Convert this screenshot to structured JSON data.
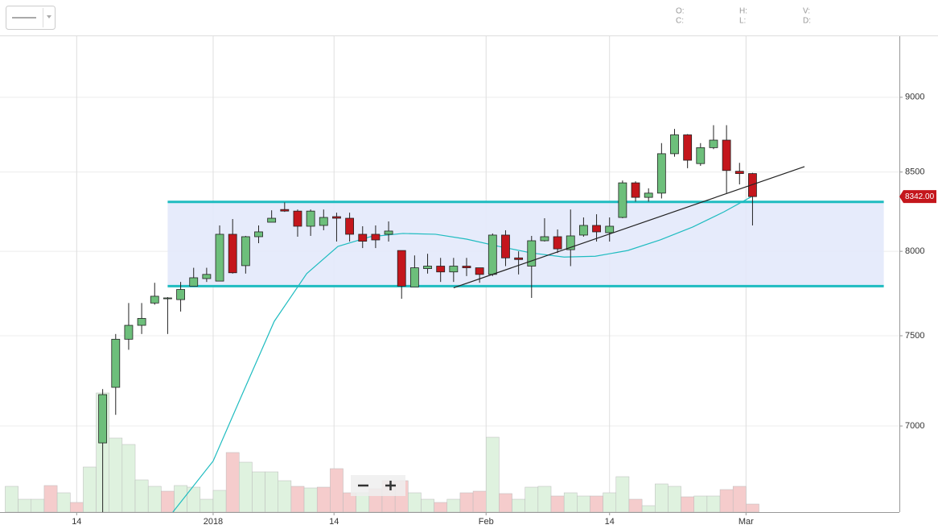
{
  "toolbar": {
    "fields": [
      "O:",
      "C:",
      "H:",
      "L:",
      "V:",
      "D:"
    ]
  },
  "chart_data": {
    "type": "candlestick",
    "x": [
      -7,
      -6,
      -5,
      -4,
      -3,
      -2,
      -1,
      0,
      1,
      2,
      3,
      4,
      5,
      6,
      7,
      8,
      9,
      10,
      11,
      12,
      13,
      14,
      15,
      16,
      17,
      18,
      19,
      20,
      21,
      22,
      23,
      24,
      25,
      26,
      27,
      28,
      29,
      30,
      31,
      32,
      33,
      34,
      35,
      36,
      37,
      38,
      39,
      40,
      41,
      42,
      43,
      44,
      45,
      46,
      47,
      48,
      49,
      50
    ],
    "open": [
      null,
      null,
      null,
      null,
      null,
      null,
      null,
      6910,
      7210,
      7480,
      7560,
      7690,
      7715,
      7710,
      7790,
      7835,
      7820,
      8105,
      7913,
      8090,
      8180,
      8260,
      8250,
      8155,
      8160,
      8215,
      8205,
      8105,
      8105,
      8105,
      8005,
      7785,
      7895,
      7910,
      7875,
      7910,
      7900,
      7860,
      8100,
      7960,
      7910,
      8065,
      8090,
      8010,
      8100,
      8160,
      8115,
      8210,
      8430,
      8337,
      8364,
      8620,
      8745,
      8555,
      8660,
      8710,
      8505,
      8490
    ],
    "high": [
      null,
      null,
      null,
      null,
      null,
      null,
      null,
      7200,
      7510,
      7690,
      7690,
      7810,
      7725,
      7815,
      7900,
      7900,
      8160,
      8200,
      8095,
      8160,
      8255,
      8305,
      8260,
      8260,
      8260,
      8240,
      8240,
      8155,
      8160,
      8185,
      8005,
      7975,
      7985,
      7960,
      7960,
      7960,
      7900,
      8110,
      8130,
      8000,
      8095,
      8205,
      8135,
      8260,
      8210,
      8230,
      8210,
      8445,
      8440,
      8395,
      8690,
      8785,
      8750,
      8690,
      8810,
      8810,
      8560,
      8495
    ],
    "low": [
      null,
      null,
      null,
      null,
      null,
      null,
      null,
      6500,
      7060,
      7420,
      7510,
      7680,
      7510,
      7640,
      7790,
      7815,
      7820,
      7865,
      7865,
      8050,
      8180,
      8245,
      8090,
      8095,
      8130,
      8060,
      8060,
      8020,
      8020,
      8060,
      7715,
      7785,
      7865,
      7815,
      7815,
      7850,
      7810,
      7850,
      7910,
      7860,
      7720,
      8060,
      7990,
      7910,
      8090,
      8060,
      8060,
      8205,
      8310,
      8310,
      8330,
      8600,
      8525,
      8540,
      8650,
      8364,
      8420,
      8160
    ],
    "close": [
      null,
      null,
      null,
      null,
      null,
      null,
      null,
      7170,
      7480,
      7560,
      7600,
      7730,
      7720,
      7770,
      7840,
      7860,
      8105,
      7870,
      8090,
      8120,
      8205,
      8250,
      8155,
      8250,
      8210,
      8205,
      8105,
      8062,
      8070,
      8125,
      7790,
      7900,
      7910,
      7875,
      7910,
      7900,
      7860,
      8100,
      7960,
      7950,
      8065,
      8090,
      8015,
      8095,
      8160,
      8120,
      8155,
      8430,
      8337,
      8364,
      8620,
      8745,
      8577,
      8660,
      8710,
      8510,
      8490,
      8342
    ],
    "volume": [
      32,
      16,
      16,
      33,
      24,
      12,
      56,
      148,
      92,
      84,
      40,
      32,
      26,
      33,
      31,
      16,
      27,
      74,
      62,
      50,
      50,
      39,
      32,
      30,
      31,
      54,
      24,
      24,
      29,
      39,
      39,
      24,
      16,
      12,
      16,
      24,
      26,
      93,
      23,
      16,
      31,
      32,
      20,
      24,
      20,
      20,
      24,
      44,
      16,
      8,
      35,
      32,
      19,
      20,
      20,
      28,
      32,
      10
    ],
    "volume_colors": [
      "#dff2df",
      "#dff2df",
      "#dff2df",
      "#f5cccc",
      "#dff2df",
      "#f5cccc",
      "#dff2df",
      "#dff2df",
      "#dff2df",
      "#dff2df",
      "#dff2df",
      "#dff2df",
      "#f5cccc",
      "#dff2df",
      "#dff2df",
      "#dff2df",
      "#dff2df",
      "#f5cccc",
      "#dff2df",
      "#dff2df",
      "#dff2df",
      "#dff2df",
      "#f5cccc",
      "#dff2df",
      "#f5cccc",
      "#f5cccc",
      "#f5cccc",
      "#dff2df",
      "#f5cccc",
      "#f5cccc",
      "#f5cccc",
      "#dff2df",
      "#dff2df",
      "#f5cccc",
      "#dff2df",
      "#f5cccc",
      "#f5cccc",
      "#dff2df",
      "#f5cccc",
      "#dff2df",
      "#dff2df",
      "#dff2df",
      "#f5cccc",
      "#dff2df",
      "#dff2df",
      "#f5cccc",
      "#dff2df",
      "#dff2df",
      "#f5cccc",
      "#dff2df",
      "#dff2df",
      "#dff2df",
      "#f5cccc",
      "#dff2df",
      "#dff2df",
      "#f5cccc",
      "#f5cccc",
      "#f5cccc"
    ],
    "up_color": "#6dbf7b",
    "down_color": "#c4161c",
    "moving_average": {
      "color": "#1fbcc0",
      "x": [
        5.4,
        8.5,
        10.7,
        13.2,
        15.7,
        18.1,
        20.6,
        23.1,
        25.6,
        28,
        30.5,
        33,
        35.5,
        37.9,
        40.4,
        42.9,
        45.4,
        47.8,
        50
      ],
      "values": [
        6554,
        6815,
        7166,
        7583,
        7865,
        8030,
        8090,
        8110,
        8105,
        8075,
        8030,
        7990,
        7965,
        7970,
        8005,
        8070,
        8150,
        8245,
        8345
      ]
    },
    "channel": {
      "color": "#1fbcc0",
      "x": [
        5,
        60.1
      ],
      "values": [
        7790,
        8308
      ]
    },
    "trendline": {
      "color": "#222222",
      "x": [
        27,
        54
      ],
      "values": [
        7780,
        8535
      ]
    },
    "price_tag": {
      "value": 8342,
      "label": "8342.00"
    },
    "xlim": [
      -7.9,
      61.3
    ],
    "xticks": [
      {
        "value": -2,
        "label": "14"
      },
      {
        "value": 8.5,
        "label": "2018"
      },
      {
        "value": 17.8,
        "label": "14"
      },
      {
        "value": 29.5,
        "label": "Feb"
      },
      {
        "value": 39,
        "label": "14"
      },
      {
        "value": 49.5,
        "label": "Mar"
      }
    ],
    "ylim": [
      6554,
      9430
    ],
    "yticks": [
      7000,
      7500,
      8000,
      8500,
      9000
    ],
    "log_scale": true,
    "grid": true
  }
}
